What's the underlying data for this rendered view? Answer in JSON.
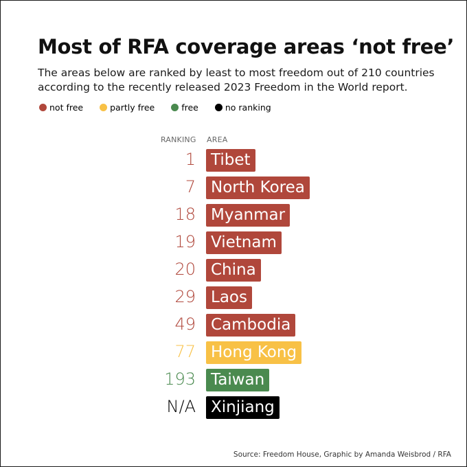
{
  "title": "Most of RFA coverage areas ‘not free’",
  "subtitle": "The areas below are ranked by least to most freedom out of 210 countries according to the recently released 2023 Freedom in the World report.",
  "legend": [
    {
      "label": "not free",
      "color": "#b0473b"
    },
    {
      "label": "partly free",
      "color": "#f8c146"
    },
    {
      "label": "free",
      "color": "#4a8a4f"
    },
    {
      "label": "no ranking",
      "color": "#000000"
    }
  ],
  "chart_data": {
    "type": "table",
    "columns": [
      "RANKING",
      "AREA"
    ],
    "rows": [
      {
        "ranking": "1",
        "area": "Tibet",
        "status": "not free"
      },
      {
        "ranking": "7",
        "area": "North Korea",
        "status": "not free"
      },
      {
        "ranking": "18",
        "area": "Myanmar",
        "status": "not free"
      },
      {
        "ranking": "19",
        "area": "Vietnam",
        "status": "not free"
      },
      {
        "ranking": "20",
        "area": "China",
        "status": "not free"
      },
      {
        "ranking": "29",
        "area": "Laos",
        "status": "not free"
      },
      {
        "ranking": "49",
        "area": "Cambodia",
        "status": "not free"
      },
      {
        "ranking": "77",
        "area": "Hong Kong",
        "status": "partly free"
      },
      {
        "ranking": "193",
        "area": "Taiwan",
        "status": "free"
      },
      {
        "ranking": "N/A",
        "area": "Xinjiang",
        "status": "no ranking"
      }
    ]
  },
  "status_colors": {
    "not free": "#b0473b",
    "partly free": "#f8c146",
    "free": "#4a8a4f",
    "no ranking": "#000000"
  },
  "source": "Source: Freedom House, Graphic by Amanda Weisbrod / RFA"
}
